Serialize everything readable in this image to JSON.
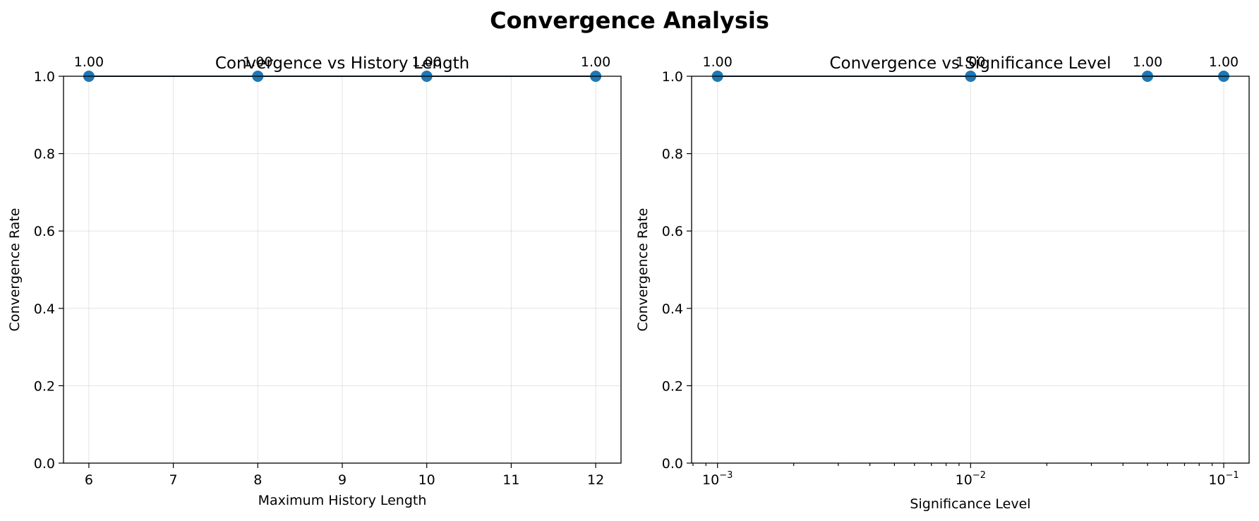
{
  "figure": {
    "title": "Convergence Analysis"
  },
  "colors": {
    "series": "#1f77b4",
    "line": "#1f3a5a"
  },
  "chart_data": [
    {
      "type": "line",
      "title": "Convergence vs History Length",
      "xlabel": "Maximum History Length",
      "ylabel": "Convergence Rate",
      "xscale": "linear",
      "xlim": [
        5.7,
        12.3
      ],
      "ylim": [
        0,
        1
      ],
      "grid": true,
      "x_ticks": [
        6,
        7,
        8,
        9,
        10,
        11,
        12
      ],
      "x_tick_labels": [
        "6",
        "7",
        "8",
        "9",
        "10",
        "11",
        "12"
      ],
      "y_ticks": [
        0,
        0.2,
        0.4,
        0.6,
        0.8,
        1.0
      ],
      "y_tick_labels": [
        "0.0",
        "0.2",
        "0.4",
        "0.6",
        "0.8",
        "1.0"
      ],
      "series": [
        {
          "x": [
            6,
            8,
            10,
            12
          ],
          "y": [
            1.0,
            1.0,
            1.0,
            1.0
          ],
          "labels": [
            "1.00",
            "1.00",
            "1.00",
            "1.00"
          ]
        }
      ]
    },
    {
      "type": "line",
      "title": "Convergence vs Significance Level",
      "xlabel": "Significance Level",
      "ylabel": "Convergence Rate",
      "xscale": "log",
      "xlim": [
        0.00079,
        0.126
      ],
      "ylim": [
        0,
        1
      ],
      "grid": true,
      "x_ticks": [
        0.001,
        0.01,
        0.1
      ],
      "x_tick_labels": [
        {
          "base": "10",
          "exp": "−3"
        },
        {
          "base": "10",
          "exp": "−2"
        },
        {
          "base": "10",
          "exp": "−1"
        }
      ],
      "y_ticks": [
        0,
        0.2,
        0.4,
        0.6,
        0.8,
        1.0
      ],
      "y_tick_labels": [
        "0.0",
        "0.2",
        "0.4",
        "0.6",
        "0.8",
        "1.0"
      ],
      "series": [
        {
          "x": [
            0.001,
            0.01,
            0.05,
            0.1
          ],
          "y": [
            1.0,
            1.0,
            1.0,
            1.0
          ],
          "labels": [
            "1.00",
            "1.00",
            "1.00",
            "1.00"
          ]
        }
      ]
    }
  ]
}
